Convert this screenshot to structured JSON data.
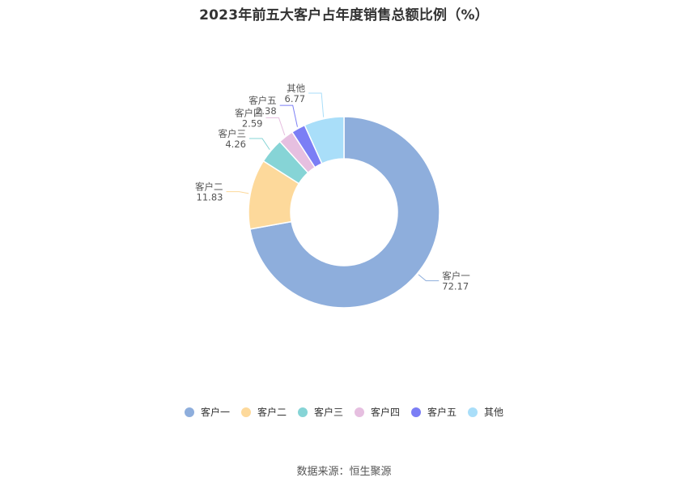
{
  "title": "2023年前五大客户占年度销售总额比例（%）",
  "source": "数据来源：恒生聚源",
  "chart_data": {
    "type": "pie",
    "variant": "donut",
    "title": "2023年前五大客户占年度销售总额比例（%）",
    "categories": [
      "客户一",
      "客户二",
      "客户三",
      "客户四",
      "客户五",
      "其他"
    ],
    "values": [
      72.17,
      11.83,
      4.26,
      2.59,
      2.38,
      6.77
    ],
    "colors": [
      "#8eaedc",
      "#fdd99b",
      "#86d4d6",
      "#e6bfe0",
      "#7b7ef5",
      "#a9def9"
    ],
    "legend_position": "bottom"
  }
}
